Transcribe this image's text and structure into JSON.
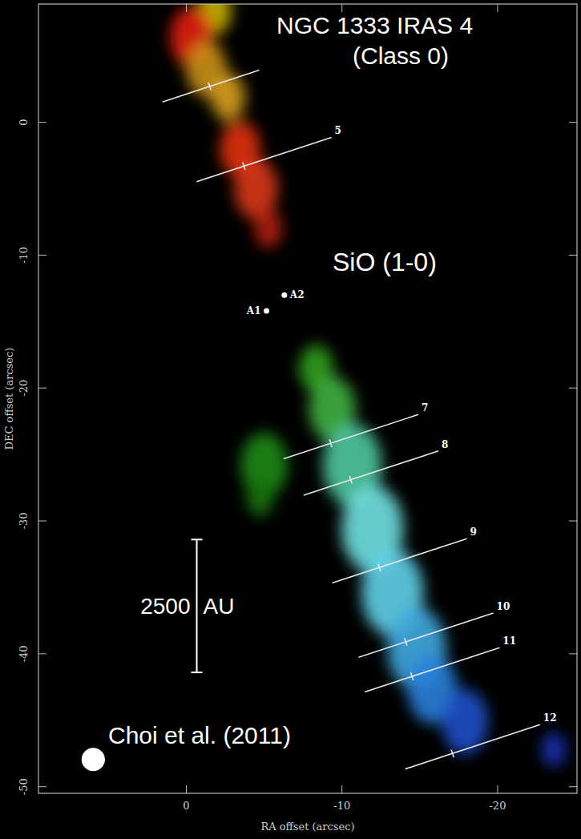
{
  "chart_data": {
    "type": "image",
    "title": "NGC 1333 IRAS 4",
    "subtitle": "(Class 0)",
    "annotations": [
      "SiO (1-0)",
      "Choi et al. (2011)"
    ],
    "x_label": "RA offset (arcsec)",
    "y_label": "DEC offset (arcsec)",
    "xlim": [
      9.5,
      -25.1
    ],
    "ylim": [
      -50.5,
      8.9
    ],
    "xticks": [
      0,
      -10,
      -20
    ],
    "yticks": [
      0,
      -10,
      -20,
      -30,
      -40,
      -50
    ],
    "sources": [
      {
        "name": "A1",
        "ra": -5.15,
        "dec": -14.2
      },
      {
        "name": "A2",
        "ra": -6.3,
        "dec": -13.0
      }
    ],
    "cuts": [
      {
        "label": null,
        "ra": -1.5,
        "dec": 2.7
      },
      {
        "label": "5",
        "ra": -3.7,
        "dec": -3.3
      },
      {
        "label": "7",
        "ra": -9.28,
        "dec": -24.16
      },
      {
        "label": "8",
        "ra": -10.57,
        "dec": -26.9
      },
      {
        "label": "9",
        "ra": -12.4,
        "dec": -33.5
      },
      {
        "label": "10",
        "ra": -14.1,
        "dec": -39.1
      },
      {
        "label": "11",
        "ra": -14.5,
        "dec": -41.7
      },
      {
        "label": "12",
        "ra": -17.1,
        "dec": -47.5
      }
    ],
    "emission": [
      {
        "ra": -1.8,
        "dec": 8.4,
        "size": 1.1,
        "color": "#c8b400"
      },
      {
        "ra": -0.36,
        "dec": 6.4,
        "size": 1.4,
        "color": "#e02010"
      },
      {
        "ra": -1.29,
        "dec": 4.0,
        "size": 1.3,
        "color": "#c89018"
      },
      {
        "ra": -2.68,
        "dec": 1.9,
        "size": 1.1,
        "color": "#d8a020"
      },
      {
        "ra": -3.45,
        "dec": -2.0,
        "size": 1.3,
        "color": "#e03010"
      },
      {
        "ra": -4.48,
        "dec": -5.0,
        "size": 1.4,
        "color": "#d83818"
      },
      {
        "ra": -5.26,
        "dec": -8.0,
        "size": 0.9,
        "color": "#b02010"
      },
      {
        "ra": -8.35,
        "dec": -18.55,
        "size": 1.1,
        "color": "#30a020"
      },
      {
        "ra": -5.0,
        "dec": -25.8,
        "size": 1.5,
        "color": "#208a18"
      },
      {
        "ra": -4.74,
        "dec": -28.2,
        "size": 0.9,
        "color": "#187010"
      },
      {
        "ra": -9.38,
        "dec": -21.6,
        "size": 1.5,
        "color": "#40b040"
      },
      {
        "ra": -10.67,
        "dec": -25.8,
        "size": 1.9,
        "color": "#50c8a0"
      },
      {
        "ra": -11.96,
        "dec": -30.6,
        "size": 2.0,
        "color": "#70e0e0"
      },
      {
        "ra": -13.25,
        "dec": -35.4,
        "size": 2.0,
        "color": "#60d0e8"
      },
      {
        "ra": -14.8,
        "dec": -39.6,
        "size": 1.9,
        "color": "#40a8e0"
      },
      {
        "ra": -15.8,
        "dec": -42.65,
        "size": 1.6,
        "color": "#2a80d8"
      },
      {
        "ra": -17.9,
        "dec": -45.1,
        "size": 1.5,
        "color": "#2050c8"
      },
      {
        "ra": -23.6,
        "dec": -47.2,
        "size": 0.8,
        "color": "#1830b0"
      }
    ],
    "scale_bar": {
      "label": "2500 AU",
      "ra": -0.67,
      "dec": -31.4,
      "length": 10
    },
    "beam": {
      "ra": 5.98,
      "dec": -47.95,
      "size": 1.5
    }
  }
}
